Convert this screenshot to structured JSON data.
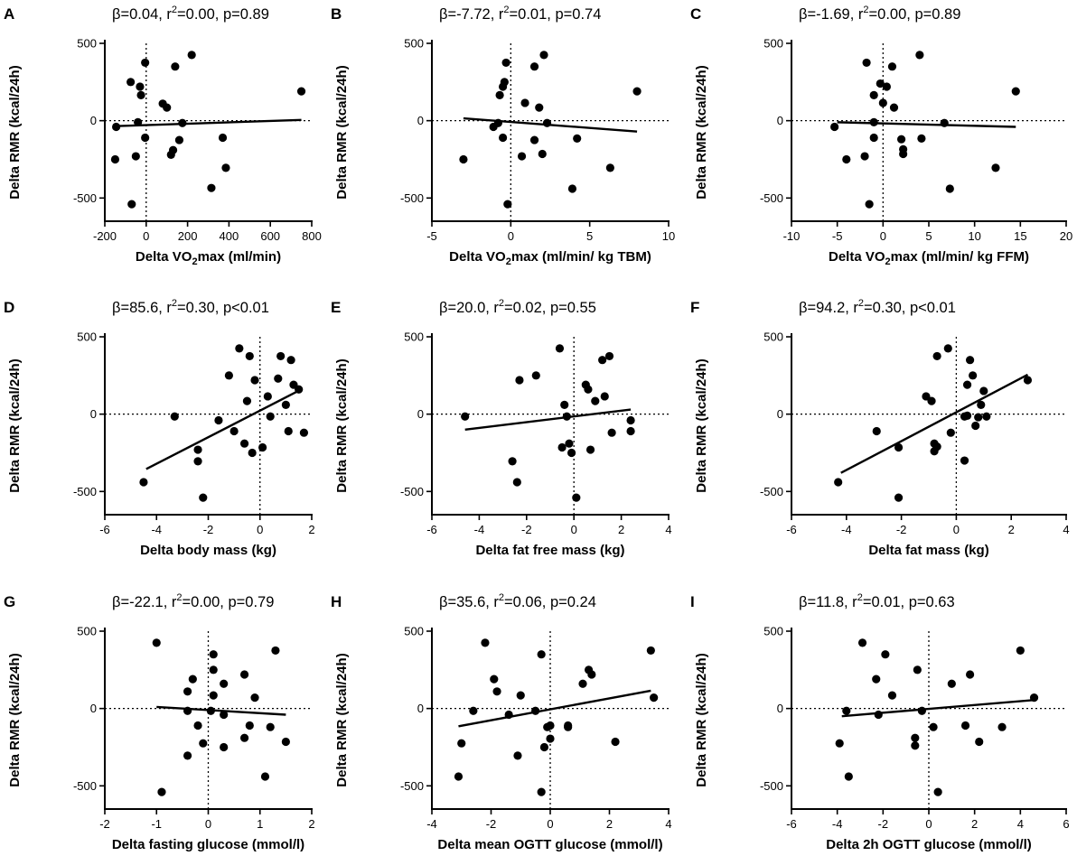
{
  "chart_data": [
    {
      "type": "scatter",
      "panel": "A",
      "stats": {
        "beta": "0.04",
        "r2": "0.00",
        "p": "p=0.89"
      },
      "xlabel": {
        "pre": "Delta VO",
        "sub": "2",
        "post": "max (ml/min)"
      },
      "ylabel": "Delta RMR  (kcal/24h)",
      "xlim": [
        -200,
        800
      ],
      "xticks": [
        -200,
        0,
        200,
        400,
        600,
        800
      ],
      "ylim": [
        -650,
        500
      ],
      "yticks": [
        -500,
        0,
        500
      ],
      "regression": {
        "x": [
          -150,
          750
        ],
        "y": [
          -35,
          5
        ]
      },
      "x": [
        -150,
        -145,
        -75,
        -70,
        -50,
        -40,
        -30,
        -25,
        -5,
        -5,
        80,
        100,
        120,
        130,
        140,
        160,
        175,
        220,
        315,
        370,
        385,
        750
      ],
      "y": [
        -250,
        -40,
        250,
        -540,
        -230,
        -10,
        220,
        165,
        -110,
        375,
        110,
        85,
        -220,
        -190,
        350,
        -125,
        -15,
        425,
        -435,
        -110,
        -305,
        190
      ]
    },
    {
      "type": "scatter",
      "panel": "B",
      "stats": {
        "beta": "-7.72",
        "r2": "0.01",
        "p": "p=0.74"
      },
      "xlabel": {
        "pre": "Delta VO",
        "sub": "2",
        "post": "max (ml/min/ kg TBM)"
      },
      "ylabel": "Delta RMR  (kcal/24h)",
      "xlim": [
        -5,
        10
      ],
      "xticks": [
        -5,
        0,
        5,
        10
      ],
      "ylim": [
        -650,
        500
      ],
      "yticks": [
        -500,
        0,
        500
      ],
      "regression": {
        "x": [
          -3,
          8
        ],
        "y": [
          15,
          -70
        ]
      },
      "x": [
        -3,
        -1.1,
        -0.8,
        -0.7,
        -0.5,
        -0.5,
        -0.4,
        -0.3,
        -0.2,
        0.7,
        0.9,
        1.5,
        1.5,
        1.8,
        2.0,
        2.1,
        2.3,
        3.9,
        4.2,
        6.3,
        8.0
      ],
      "y": [
        -250,
        -40,
        -15,
        165,
        -110,
        220,
        250,
        375,
        -540,
        -230,
        115,
        350,
        -125,
        85,
        -215,
        425,
        -15,
        -440,
        -115,
        -305,
        190
      ]
    },
    {
      "type": "scatter",
      "panel": "C",
      "stats": {
        "beta": "-1.69",
        "r2": "0.00",
        "p": "p=0.89"
      },
      "xlabel": {
        "pre": "Delta VO",
        "sub": "2",
        "post": "max (ml/min/ kg FFM)"
      },
      "ylabel": "Delta RMR  (kcal/24h)",
      "xlim": [
        -10,
        20
      ],
      "xticks": [
        -10,
        -5,
        0,
        5,
        10,
        15,
        20
      ],
      "ylim": [
        -650,
        500
      ],
      "yticks": [
        -500,
        0,
        500
      ],
      "regression": {
        "x": [
          -5,
          14.5
        ],
        "y": [
          -10,
          -40
        ]
      },
      "x": [
        -5.3,
        -4,
        -2,
        -1.8,
        -1.5,
        -1.0,
        -1.0,
        -1.0,
        -0.3,
        0,
        0.4,
        1.0,
        1.2,
        2.0,
        2.2,
        2.2,
        4.2,
        4.0,
        6.7,
        7.3,
        12.3,
        14.5
      ],
      "y": [
        -40,
        -250,
        -230,
        375,
        -540,
        -10,
        165,
        -110,
        240,
        115,
        220,
        350,
        85,
        -120,
        -185,
        -215,
        -115,
        425,
        -15,
        -440,
        -305,
        190
      ]
    },
    {
      "type": "scatter",
      "panel": "D",
      "stats": {
        "beta": "85.6",
        "r2": "0.30",
        "p": "p<0.01"
      },
      "xlabel": {
        "pre": "Delta body mass (kg)",
        "sub": "",
        "post": ""
      },
      "ylabel": "Delta RMR  (kcal/24h)",
      "xlim": [
        -6,
        2
      ],
      "xticks": [
        -6,
        -4,
        -2,
        0,
        2
      ],
      "ylim": [
        -650,
        500
      ],
      "yticks": [
        -500,
        0,
        500
      ],
      "regression": {
        "x": [
          -4.4,
          1.6
        ],
        "y": [
          -355,
          160
        ]
      },
      "x": [
        -4.5,
        -3.3,
        -2.4,
        -2.4,
        -2.2,
        -1.6,
        -1.2,
        -1.0,
        -0.8,
        -0.6,
        -0.5,
        -0.4,
        -0.3,
        -0.2,
        0.1,
        0.3,
        0.4,
        0.7,
        0.8,
        1.0,
        1.2,
        1.3,
        1.5,
        1.7,
        1.1
      ],
      "y": [
        -440,
        -15,
        -230,
        -305,
        -540,
        -40,
        250,
        -110,
        425,
        -190,
        85,
        375,
        -250,
        220,
        -215,
        115,
        -15,
        230,
        375,
        60,
        350,
        190,
        160,
        -120,
        -110
      ]
    },
    {
      "type": "scatter",
      "panel": "E",
      "stats": {
        "beta": "20.0",
        "r2": "0.02",
        "p": "p=0.55"
      },
      "xlabel": {
        "pre": "Delta fat free mass (kg)",
        "sub": "",
        "post": ""
      },
      "ylabel": "Delta RMR  (kcal/24h)",
      "xlim": [
        -6,
        4
      ],
      "xticks": [
        -6,
        -4,
        -2,
        0,
        2,
        4
      ],
      "ylim": [
        -650,
        500
      ],
      "yticks": [
        -500,
        0,
        500
      ],
      "regression": {
        "x": [
          -4.6,
          2.4
        ],
        "y": [
          -100,
          30
        ]
      },
      "x": [
        -4.6,
        -2.6,
        -2.4,
        -2.3,
        -1.6,
        -0.6,
        -0.5,
        -0.4,
        -0.3,
        -0.2,
        -0.1,
        0.1,
        0.5,
        0.6,
        0.7,
        0.9,
        1.2,
        1.3,
        1.5,
        1.6,
        2.4,
        2.4
      ],
      "y": [
        -15,
        -305,
        -440,
        220,
        250,
        425,
        -215,
        60,
        -15,
        -190,
        -250,
        -540,
        190,
        160,
        -230,
        85,
        350,
        115,
        375,
        -120,
        -40,
        -110
      ]
    },
    {
      "type": "scatter",
      "panel": "F",
      "stats": {
        "beta": "94.2",
        "r2": "0.30",
        "p": "p<0.01"
      },
      "xlabel": {
        "pre": "Delta fat mass (kg)",
        "sub": "",
        "post": ""
      },
      "ylabel": "Delta RMR  (kcal/24h)",
      "xlim": [
        -6,
        4
      ],
      "xticks": [
        -6,
        -4,
        -2,
        0,
        2,
        4
      ],
      "ylim": [
        -650,
        500
      ],
      "yticks": [
        -500,
        0,
        500
      ],
      "regression": {
        "x": [
          -4.2,
          2.6
        ],
        "y": [
          -380,
          255
        ]
      },
      "x": [
        -4.3,
        -2.9,
        -2.1,
        -2.1,
        -1.1,
        -0.9,
        -0.8,
        -0.8,
        -0.7,
        -0.7,
        -0.3,
        -0.2,
        0.3,
        0.3,
        0.4,
        0.5,
        0.6,
        0.7,
        0.8,
        0.9,
        1.0,
        1.1,
        0.4,
        2.6
      ],
      "y": [
        -440,
        -110,
        -215,
        -540,
        115,
        85,
        -240,
        -190,
        375,
        -210,
        425,
        -120,
        -300,
        -15,
        190,
        350,
        250,
        -75,
        -20,
        60,
        150,
        -15,
        -10,
        220
      ]
    },
    {
      "type": "scatter",
      "panel": "G",
      "stats": {
        "beta": "-22.1",
        "r2": "0.00",
        "p": "p=0.79"
      },
      "xlabel": {
        "pre": "Delta fasting glucose (mmol/l)",
        "sub": "",
        "post": ""
      },
      "ylabel": "Delta RMR  (kcal/24h)",
      "xlim": [
        -2,
        2
      ],
      "xticks": [
        -2,
        -1,
        0,
        1,
        2
      ],
      "ylim": [
        -650,
        500
      ],
      "yticks": [
        -500,
        0,
        500
      ],
      "regression": {
        "x": [
          -1.0,
          1.5
        ],
        "y": [
          10,
          -40
        ]
      },
      "x": [
        -1.0,
        -0.9,
        -0.4,
        -0.4,
        -0.4,
        -0.3,
        -0.2,
        -0.1,
        0.05,
        0.1,
        0.1,
        0.1,
        0.3,
        0.3,
        0.3,
        0.7,
        0.7,
        0.8,
        0.9,
        1.1,
        1.2,
        1.3,
        1.5
      ],
      "y": [
        425,
        -540,
        110,
        -15,
        -305,
        190,
        -110,
        -225,
        -15,
        350,
        250,
        85,
        160,
        -40,
        -250,
        220,
        -190,
        -110,
        70,
        -440,
        -120,
        375,
        -215
      ]
    },
    {
      "type": "scatter",
      "panel": "H",
      "stats": {
        "beta": "35.6",
        "r2": "0.06",
        "p": "p=0.24"
      },
      "xlabel": {
        "pre": "Delta mean OGTT glucose (mmol/l)",
        "sub": "",
        "post": ""
      },
      "ylabel": "Delta RMR  (kcal/24h)",
      "xlim": [
        -4,
        4
      ],
      "xticks": [
        -4,
        -2,
        0,
        2,
        4
      ],
      "ylim": [
        -650,
        500
      ],
      "yticks": [
        -500,
        0,
        500
      ],
      "regression": {
        "x": [
          -3.1,
          3.4
        ],
        "y": [
          -115,
          115
        ]
      },
      "x": [
        -3.1,
        -3.0,
        -2.6,
        -2.2,
        -1.9,
        -1.8,
        -1.4,
        -1.1,
        -1.0,
        -0.5,
        -0.3,
        -0.2,
        -0.1,
        0.0,
        0.0,
        0.6,
        0.6,
        1.1,
        1.3,
        1.4,
        2.2,
        3.4,
        3.5,
        -0.3
      ],
      "y": [
        -440,
        -225,
        -15,
        425,
        190,
        110,
        -40,
        -305,
        85,
        -15,
        350,
        -250,
        -120,
        -110,
        -195,
        -120,
        -110,
        160,
        250,
        220,
        -215,
        375,
        70,
        -540
      ]
    },
    {
      "type": "scatter",
      "panel": "I",
      "stats": {
        "beta": "11.8",
        "r2": "0.01",
        "p": "p=0.63"
      },
      "xlabel": {
        "pre": "Delta 2h OGTT glucose (mmol/l)",
        "sub": "",
        "post": ""
      },
      "ylabel": "Delta RMR  (kcal/24h)",
      "xlim": [
        -6,
        6
      ],
      "xticks": [
        -6,
        -4,
        -2,
        0,
        2,
        4,
        6
      ],
      "ylim": [
        -650,
        500
      ],
      "yticks": [
        -500,
        0,
        500
      ],
      "regression": {
        "x": [
          -3.8,
          4.6
        ],
        "y": [
          -50,
          55
        ]
      },
      "x": [
        -3.9,
        -3.6,
        -3.5,
        -2.9,
        -2.3,
        -2.2,
        -1.9,
        -1.6,
        -0.6,
        -0.6,
        -0.5,
        -0.3,
        0.2,
        0.4,
        1.0,
        1.6,
        1.8,
        2.2,
        3.2,
        4.0,
        4.6
      ],
      "y": [
        -225,
        -15,
        -440,
        425,
        190,
        -40,
        350,
        85,
        -190,
        -240,
        250,
        -15,
        -120,
        -540,
        160,
        -110,
        220,
        -215,
        -120,
        375,
        70
      ]
    }
  ]
}
